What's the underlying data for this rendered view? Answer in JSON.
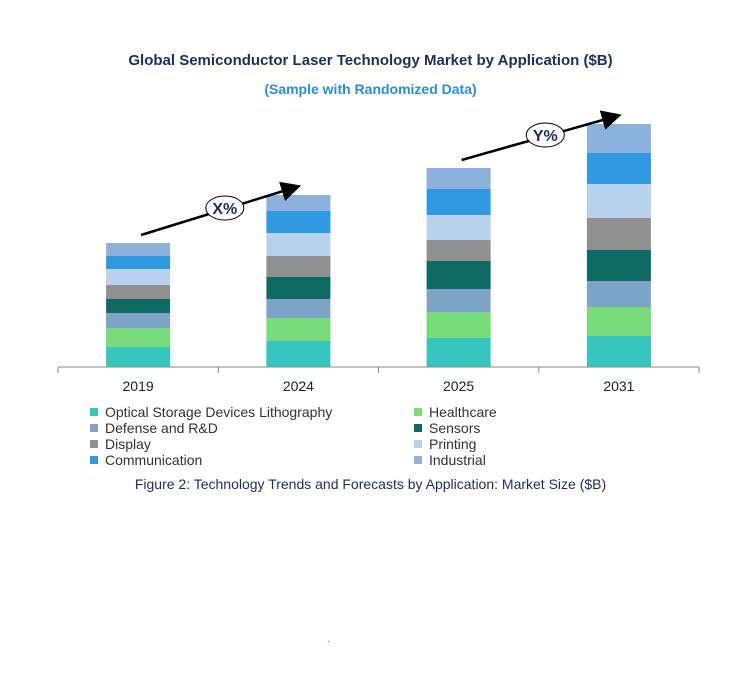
{
  "chart_data": {
    "type": "bar",
    "stacked": true,
    "title": "Global Semiconductor Laser Technology Market by Application ($B)",
    "subtitle": "(Sample with Randomized Data)",
    "xlabel": "",
    "ylabel": "",
    "categories": [
      "2019",
      "2024",
      "2025",
      "2031"
    ],
    "series": [
      {
        "name": "Optical Storage Devices Lithography",
        "color": "#35c6bf",
        "values": [
          20,
          26,
          29,
          31
        ]
      },
      {
        "name": "Healthcare",
        "color": "#78dd78",
        "values": [
          19,
          23,
          26,
          29
        ]
      },
      {
        "name": "Defense and R&D",
        "color": "#7ea3c8",
        "values": [
          15,
          19,
          23,
          26
        ]
      },
      {
        "name": "Sensors",
        "color": "#0d6b64",
        "values": [
          14,
          22,
          28,
          31
        ]
      },
      {
        "name": "Display",
        "color": "#909090",
        "values": [
          14,
          21,
          21,
          32
        ]
      },
      {
        "name": "Printing",
        "color": "#b8d1ec",
        "values": [
          16,
          23,
          25,
          34
        ]
      },
      {
        "name": "Communication",
        "color": "#2f9ae1",
        "values": [
          13,
          22,
          26,
          31
        ]
      },
      {
        "name": "Industrial",
        "color": "#8cb2dc",
        "values": [
          13,
          16,
          21,
          29
        ]
      }
    ],
    "ylim": [
      0,
      250
    ],
    "grid": false,
    "legend_position": "bottom",
    "annotations": [
      {
        "text": "X%",
        "between": [
          "2019",
          "2024"
        ]
      },
      {
        "text": "Y%",
        "between": [
          "2025",
          "2031"
        ]
      }
    ]
  },
  "caption": "Figure 2: Technology Trends and Forecasts by Application: Market Size ($B)",
  "stray_mark": "."
}
